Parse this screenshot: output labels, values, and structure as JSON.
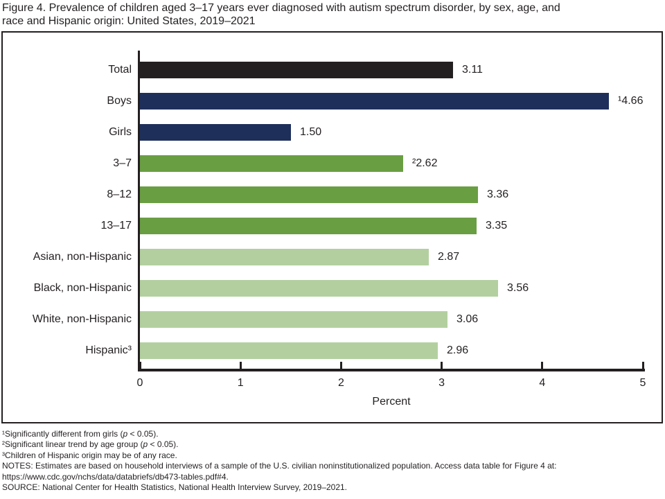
{
  "chart_data": {
    "type": "bar",
    "orientation": "horizontal",
    "title": "Figure 4. Prevalence of children aged 3–17 years ever diagnosed with autism spectrum disorder, by sex, age, and\nrace and Hispanic origin: United States, 2019–2021",
    "categories": [
      "Total",
      "Boys",
      "Girls",
      "3–7",
      "8–12",
      "13–17",
      "Asian, non-Hispanic",
      "Black, non-Hispanic",
      "White, non-Hispanic",
      "Hispanic"
    ],
    "category_labels": [
      "Total",
      "Boys",
      "Girls",
      "3–7",
      "8–12",
      "13–17",
      "Asian, non-Hispanic",
      "Black, non-Hispanic",
      "White, non-Hispanic",
      "Hispanic³"
    ],
    "values": [
      3.11,
      4.66,
      1.5,
      2.62,
      3.36,
      3.35,
      2.87,
      3.56,
      3.06,
      2.96
    ],
    "value_labels": [
      "3.11",
      "¹4.66",
      "1.50",
      "²2.62",
      "3.36",
      "3.35",
      "2.87",
      "3.56",
      "3.06",
      "2.96"
    ],
    "bar_colors": [
      "#231f20",
      "#1e2f5a",
      "#1e2f5a",
      "#6a9e43",
      "#6a9e43",
      "#6a9e43",
      "#b3cfa0",
      "#b3cfa0",
      "#b3cfa0",
      "#b3cfa0"
    ],
    "group_colors": {
      "total": "#231f20",
      "sex": "#1e2f5a",
      "age": "#6a9e43",
      "race_ethnicity": "#b3cfa0"
    },
    "xlabel": "Percent",
    "xlim": [
      0,
      5
    ],
    "xticks": [
      0,
      1,
      2,
      3,
      4,
      5
    ],
    "grid": false,
    "legend": "none",
    "axis_color": "#231f20"
  },
  "footnotes": [
    {
      "parts": [
        [
          "¹Significantly different from girls (",
          ""
        ],
        [
          "p",
          "i"
        ],
        [
          " < 0.05).",
          ""
        ]
      ]
    },
    {
      "parts": [
        [
          "²Significant linear trend by age group (",
          ""
        ],
        [
          "p",
          "i"
        ],
        [
          " < 0.05).",
          ""
        ]
      ]
    },
    {
      "parts": [
        [
          "³Children of Hispanic origin may be of any race.",
          ""
        ]
      ]
    },
    {
      "parts": [
        [
          "NOTES: Estimates are based on household interviews of a sample of the U.S. civilian noninstitutionalized population. Access data table for Figure 4 at:",
          ""
        ]
      ]
    },
    {
      "parts": [
        [
          "https://www.cdc.gov/nchs/data/databriefs/db473-tables.pdf#4.",
          ""
        ]
      ]
    },
    {
      "parts": [
        [
          "SOURCE: National Center for Health Statistics, National Health Interview Survey, 2019–2021.",
          ""
        ]
      ]
    }
  ]
}
